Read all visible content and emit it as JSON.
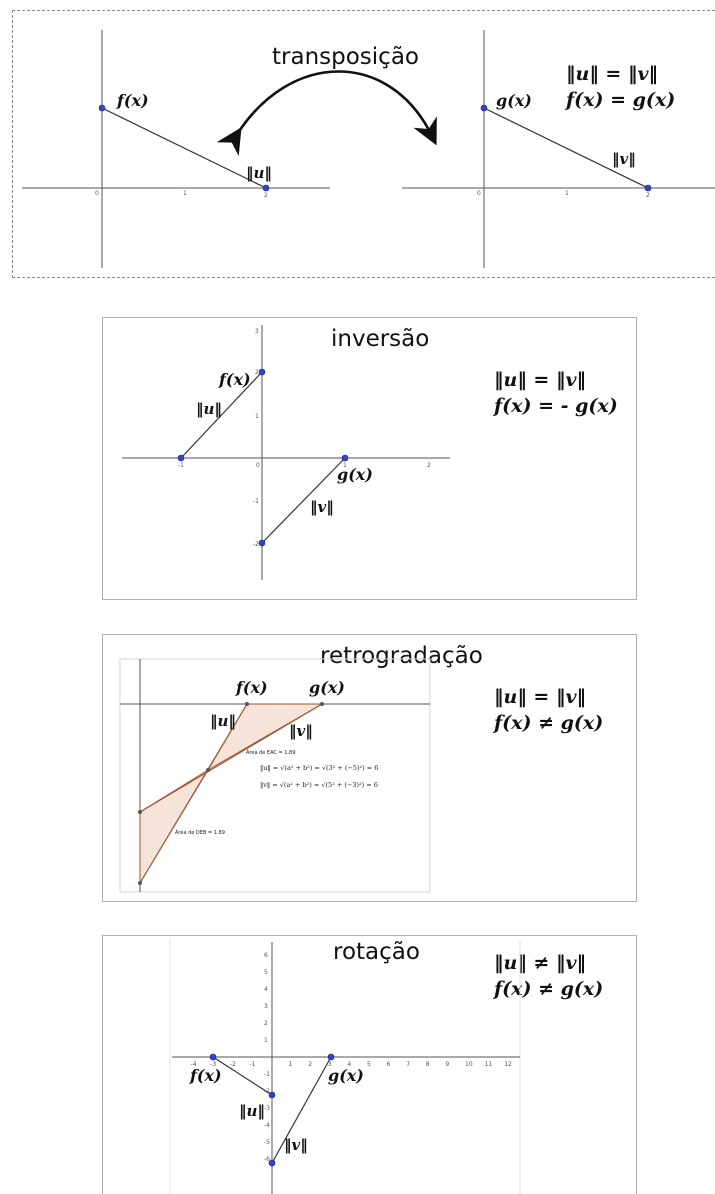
{
  "panels": {
    "transposicao": {
      "title": "transposição",
      "norm_relation": "‖u‖ = ‖v‖",
      "func_relation": "f(x) = g(x)",
      "left": {
        "func": "f(x)",
        "vector": "‖u‖",
        "ticks": [
          "0",
          "1",
          "2"
        ]
      },
      "right": {
        "func": "g(x)",
        "vector": "‖v‖",
        "ticks": [
          "0",
          "1",
          "2"
        ]
      }
    },
    "inversao": {
      "title": "inversão",
      "norm_relation": "‖u‖ = ‖v‖",
      "func_relation": "f(x) = - g(x)",
      "func_f": "f(x)",
      "func_g": "g(x)",
      "vector_u": "‖u‖",
      "vector_v": "‖v‖",
      "x_ticks": [
        "-1",
        "0",
        "1",
        "2"
      ],
      "y_ticks": [
        "3",
        "2",
        "1",
        "-1",
        "-2"
      ]
    },
    "retrogradacao": {
      "title": "retrogradação",
      "norm_relation": "‖u‖ = ‖v‖",
      "func_relation": "f(x) ≠ g(x)",
      "func_f": "f(x)",
      "func_g": "g(x)",
      "vector_u": "‖u‖",
      "vector_v": "‖v‖",
      "area_eac": "Área de EAC = 1.89",
      "area_deb": "Área de DEB = 1.89",
      "norm_u_formula": "‖u‖ = √(a² + b²) = √(3² + (−5)²) = 6",
      "norm_v_formula": "‖v‖ = √(a² + b²) = √(5² + (−3)²) = 6"
    },
    "rotacao": {
      "title": "rotação",
      "norm_relation": "‖u‖ ≠ ‖v‖",
      "func_relation": "f(x) ≠ g(x)",
      "func_f": "f(x)",
      "func_g": "g(x)",
      "vector_u": "‖u‖",
      "vector_v": "‖v‖",
      "x_ticks": [
        "-4",
        "-3",
        "-2",
        "-1",
        "0",
        "1",
        "2",
        "3",
        "4",
        "5",
        "6",
        "7",
        "8",
        "9",
        "10",
        "11",
        "12"
      ],
      "y_ticks": [
        "6",
        "5",
        "4",
        "3",
        "2",
        "1",
        "-1",
        "-2",
        "-3",
        "-4",
        "-5",
        "-6"
      ]
    }
  },
  "colors": {
    "point": "#3344cc",
    "triangle_fill": "#f6e3d9",
    "triangle_stroke": "#a0522d"
  }
}
